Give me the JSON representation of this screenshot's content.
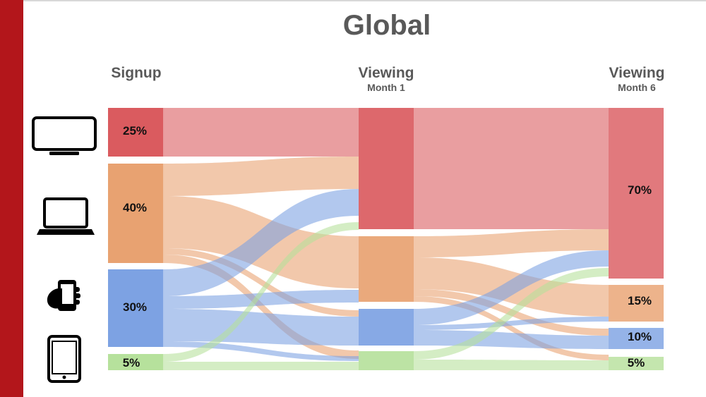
{
  "title": "Global",
  "columns": [
    {
      "label": "Signup",
      "sublabel": ""
    },
    {
      "label": "Viewing",
      "sublabel": "Month 1"
    },
    {
      "label": "Viewing",
      "sublabel": "Month 6"
    }
  ],
  "devices": [
    {
      "name": "tv",
      "icon": "tv-icon"
    },
    {
      "name": "laptop",
      "icon": "laptop-icon"
    },
    {
      "name": "phone",
      "icon": "phone-icon"
    },
    {
      "name": "tablet",
      "icon": "tablet-icon"
    }
  ],
  "colors": {
    "tv": "#d9585c",
    "laptop": "#e8a06e",
    "phone": "#7aa0e2",
    "tablet": "#b5e09a",
    "accent_bar": "#b3161b"
  },
  "signup_labels": [
    "25%",
    "40%",
    "30%",
    "5%"
  ],
  "month6_labels": [
    "70%",
    "15%",
    "10%",
    "5%"
  ]
}
